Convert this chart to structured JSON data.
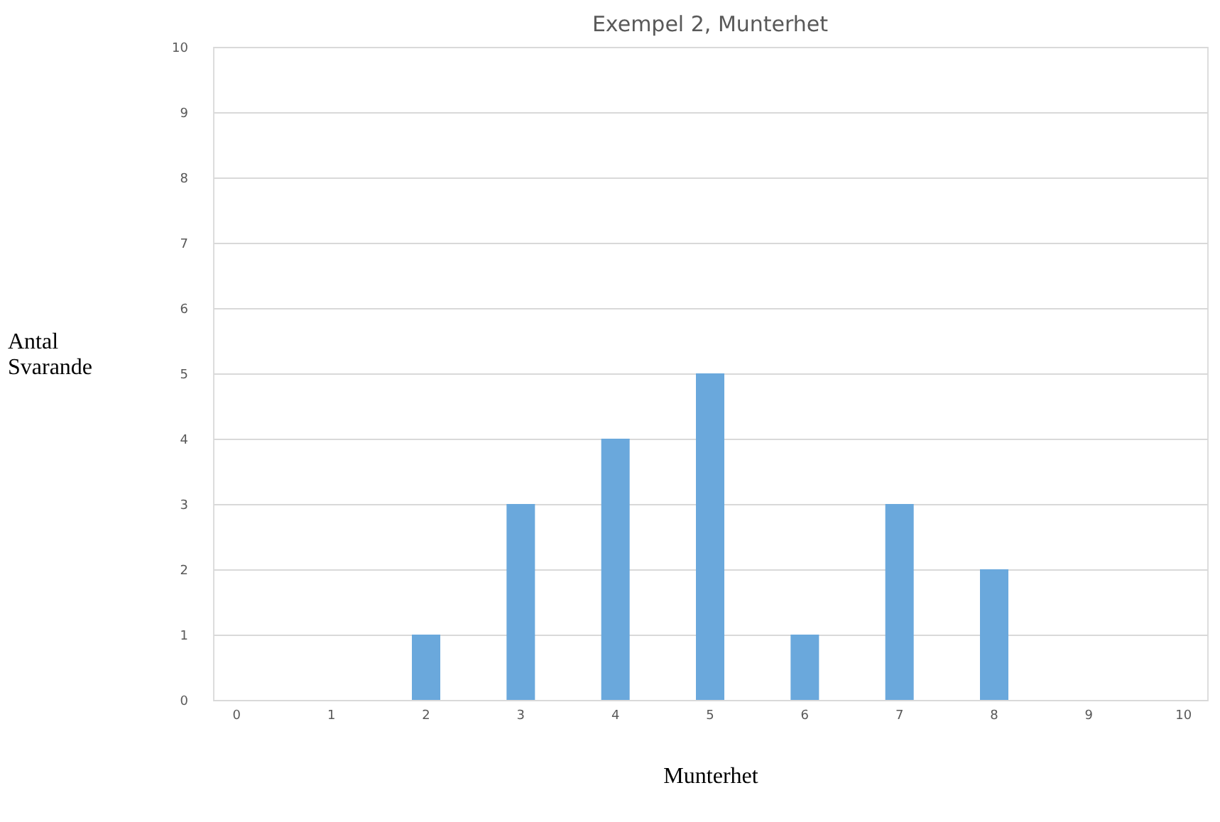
{
  "chart_data": {
    "type": "bar",
    "title": "Exempel 2, Munterhet",
    "xlabel": "Munterhet",
    "ylabel": "Antal Svarande",
    "categories": [
      "0",
      "1",
      "2",
      "3",
      "4",
      "5",
      "6",
      "7",
      "8",
      "9",
      "10"
    ],
    "values": [
      0,
      0,
      1,
      3,
      4,
      5,
      1,
      3,
      2,
      0,
      0
    ],
    "color": "#6aa8dc",
    "ylim": [
      0,
      10
    ],
    "yticks": [
      0,
      1,
      2,
      3,
      4,
      5,
      6,
      7,
      8,
      9,
      10
    ],
    "grid": "y"
  }
}
